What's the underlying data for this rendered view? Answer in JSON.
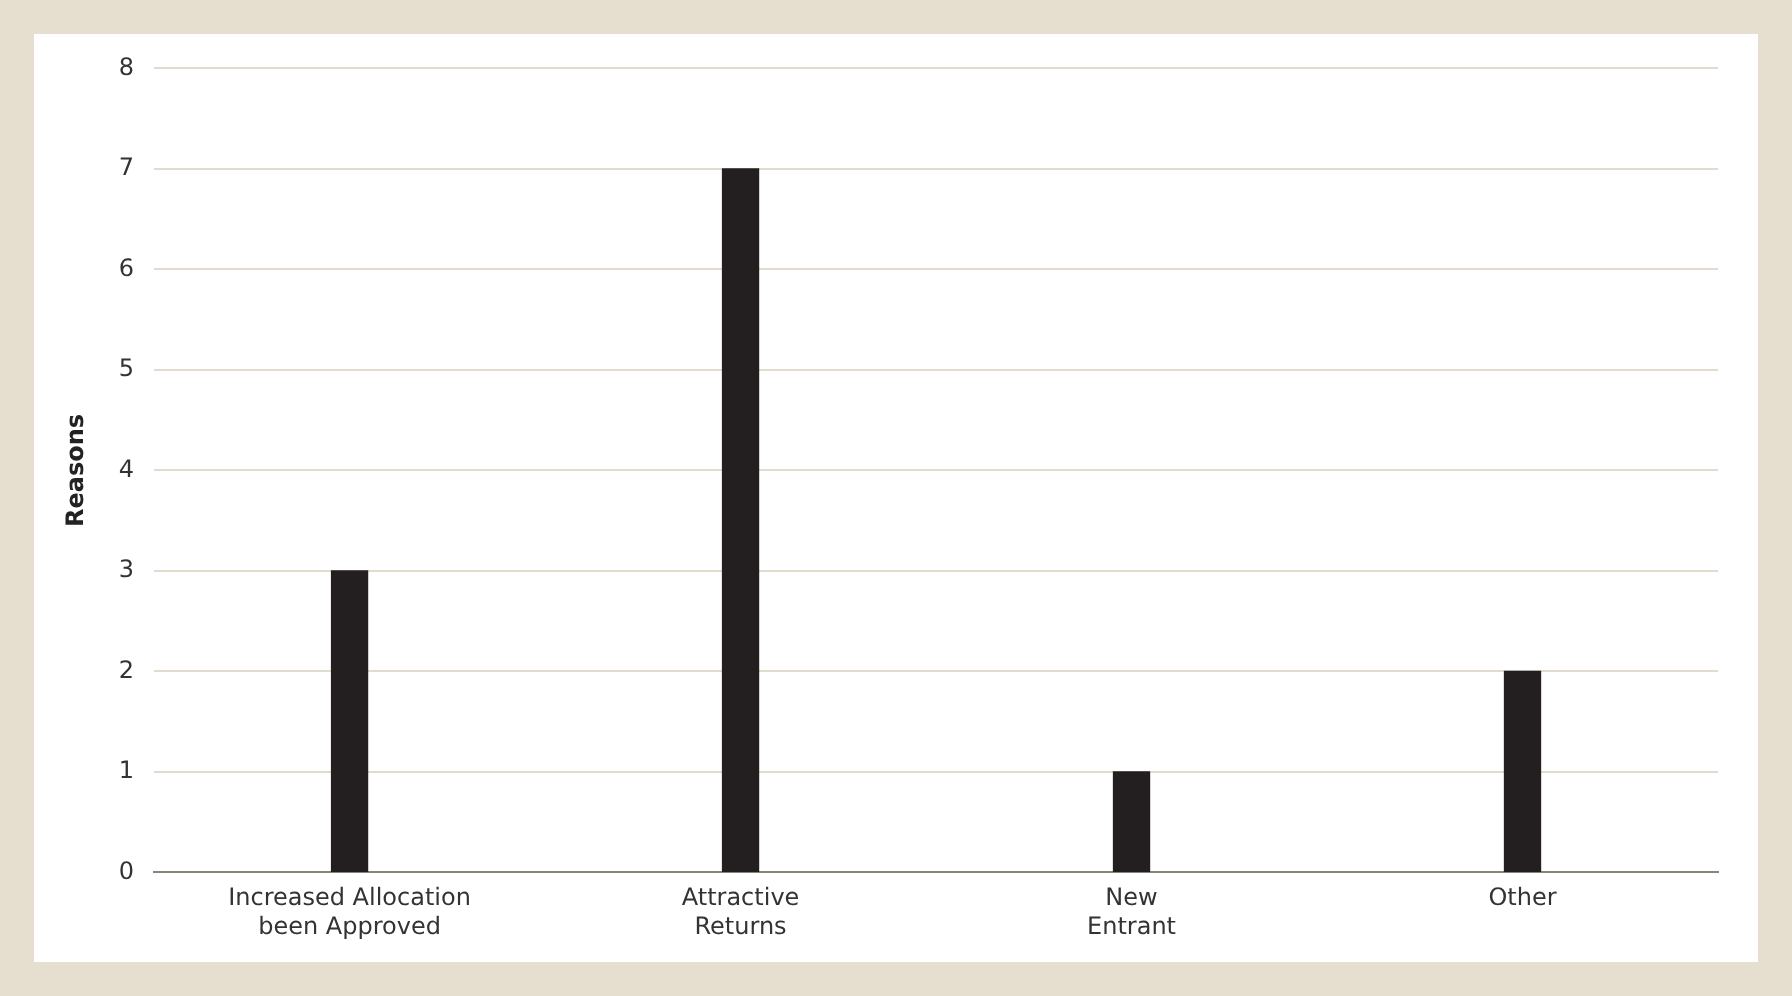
{
  "chart_data": {
    "type": "bar",
    "ylabel": "Reasons",
    "categories": [
      "Increased Allocation\nbeen Approved",
      "Attractive\nReturns",
      "New\nEntrant",
      "Other"
    ],
    "values": [
      3,
      7,
      1,
      2
    ],
    "color": "#231f20",
    "ylim": [
      0,
      8
    ],
    "yticks": [
      0,
      1,
      2,
      3,
      4,
      5,
      6,
      7,
      8
    ],
    "grid": "y"
  }
}
